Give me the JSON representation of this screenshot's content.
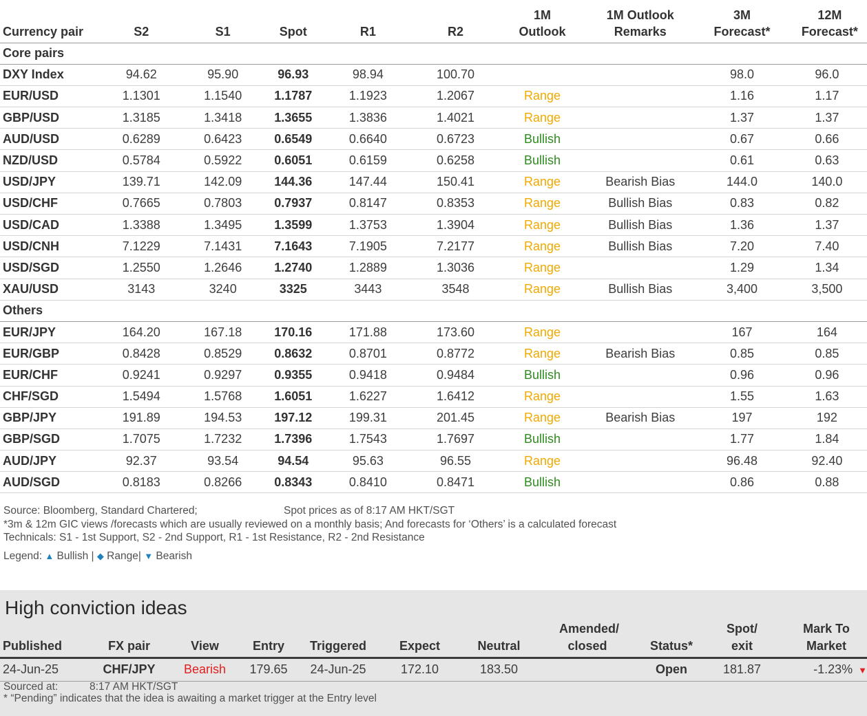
{
  "fx_table": {
    "headers": {
      "pair": "Currency pair",
      "s2": "S2",
      "s1": "S1",
      "spot": "Spot",
      "r1": "R1",
      "r2": "R2",
      "outlook": "1M Outlook",
      "remarks": "1M Outlook Remarks",
      "f3m": "3M Forecast*",
      "f12m": "12M Forecast*"
    },
    "sections": [
      {
        "title": "Core pairs",
        "rows": [
          {
            "pair": "DXY Index",
            "s2": "94.62",
            "s1": "95.90",
            "spot": "96.93",
            "r1": "98.94",
            "r2": "100.70",
            "outlook": "",
            "remarks": "",
            "f3m": "98.0",
            "f12m": "96.0"
          },
          {
            "pair": "EUR/USD",
            "s2": "1.1301",
            "s1": "1.1540",
            "spot": "1.1787",
            "r1": "1.1923",
            "r2": "1.2067",
            "outlook": "Range",
            "remarks": "",
            "f3m": "1.16",
            "f12m": "1.17"
          },
          {
            "pair": "GBP/USD",
            "s2": "1.3185",
            "s1": "1.3418",
            "spot": "1.3655",
            "r1": "1.3836",
            "r2": "1.4021",
            "outlook": "Range",
            "remarks": "",
            "f3m": "1.37",
            "f12m": "1.37"
          },
          {
            "pair": "AUD/USD",
            "s2": "0.6289",
            "s1": "0.6423",
            "spot": "0.6549",
            "r1": "0.6640",
            "r2": "0.6723",
            "outlook": "Bullish",
            "remarks": "",
            "f3m": "0.67",
            "f12m": "0.66"
          },
          {
            "pair": "NZD/USD",
            "s2": "0.5784",
            "s1": "0.5922",
            "spot": "0.6051",
            "r1": "0.6159",
            "r2": "0.6258",
            "outlook": "Bullish",
            "remarks": "",
            "f3m": "0.61",
            "f12m": "0.63"
          },
          {
            "pair": "USD/JPY",
            "s2": "139.71",
            "s1": "142.09",
            "spot": "144.36",
            "r1": "147.44",
            "r2": "150.41",
            "outlook": "Range",
            "remarks": "Bearish Bias",
            "f3m": "144.0",
            "f12m": "140.0"
          },
          {
            "pair": "USD/CHF",
            "s2": "0.7665",
            "s1": "0.7803",
            "spot": "0.7937",
            "r1": "0.8147",
            "r2": "0.8353",
            "outlook": "Range",
            "remarks": "Bullish Bias",
            "f3m": "0.83",
            "f12m": "0.82"
          },
          {
            "pair": "USD/CAD",
            "s2": "1.3388",
            "s1": "1.3495",
            "spot": "1.3599",
            "r1": "1.3753",
            "r2": "1.3904",
            "outlook": "Range",
            "remarks": "Bullish Bias",
            "f3m": "1.36",
            "f12m": "1.37"
          },
          {
            "pair": "USD/CNH",
            "s2": "7.1229",
            "s1": "7.1431",
            "spot": "7.1643",
            "r1": "7.1905",
            "r2": "7.2177",
            "outlook": "Range",
            "remarks": "Bullish Bias",
            "f3m": "7.20",
            "f12m": "7.40"
          },
          {
            "pair": "USD/SGD",
            "s2": "1.2550",
            "s1": "1.2646",
            "spot": "1.2740",
            "r1": "1.2889",
            "r2": "1.3036",
            "outlook": "Range",
            "remarks": "",
            "f3m": "1.29",
            "f12m": "1.34"
          },
          {
            "pair": "XAU/USD",
            "s2": "3143",
            "s1": "3240",
            "spot": "3325",
            "r1": "3443",
            "r2": "3548",
            "outlook": "Range",
            "remarks": "Bullish Bias",
            "f3m": "3,400",
            "f12m": "3,500"
          }
        ]
      },
      {
        "title": "Others",
        "rows": [
          {
            "pair": "EUR/JPY",
            "s2": "164.20",
            "s1": "167.18",
            "spot": "170.16",
            "r1": "171.88",
            "r2": "173.60",
            "outlook": "Range",
            "remarks": "",
            "f3m": "167",
            "f12m": "164"
          },
          {
            "pair": "EUR/GBP",
            "s2": "0.8428",
            "s1": "0.8529",
            "spot": "0.8632",
            "r1": "0.8701",
            "r2": "0.8772",
            "outlook": "Range",
            "remarks": "Bearish Bias",
            "f3m": "0.85",
            "f12m": "0.85"
          },
          {
            "pair": "EUR/CHF",
            "s2": "0.9241",
            "s1": "0.9297",
            "spot": "0.9355",
            "r1": "0.9418",
            "r2": "0.9484",
            "outlook": "Bullish",
            "remarks": "",
            "f3m": "0.96",
            "f12m": "0.96"
          },
          {
            "pair": "CHF/SGD",
            "s2": "1.5494",
            "s1": "1.5768",
            "spot": "1.6051",
            "r1": "1.6227",
            "r2": "1.6412",
            "outlook": "Range",
            "remarks": "",
            "f3m": "1.55",
            "f12m": "1.63"
          },
          {
            "pair": "GBP/JPY",
            "s2": "191.89",
            "s1": "194.53",
            "spot": "197.12",
            "r1": "199.31",
            "r2": "201.45",
            "outlook": "Range",
            "remarks": "Bearish Bias",
            "f3m": "197",
            "f12m": "192"
          },
          {
            "pair": "GBP/SGD",
            "s2": "1.7075",
            "s1": "1.7232",
            "spot": "1.7396",
            "r1": "1.7543",
            "r2": "1.7697",
            "outlook": "Bullish",
            "remarks": "",
            "f3m": "1.77",
            "f12m": "1.84"
          },
          {
            "pair": "AUD/JPY",
            "s2": "92.37",
            "s1": "93.54",
            "spot": "94.54",
            "r1": "95.63",
            "r2": "96.55",
            "outlook": "Range",
            "remarks": "",
            "f3m": "96.48",
            "f12m": "92.40"
          },
          {
            "pair": "AUD/SGD",
            "s2": "0.8183",
            "s1": "0.8266",
            "spot": "0.8343",
            "r1": "0.8410",
            "r2": "0.8471",
            "outlook": "Bullish",
            "remarks": "",
            "f3m": "0.86",
            "f12m": "0.88"
          }
        ]
      }
    ]
  },
  "notes": {
    "source": "Source: Bloomberg, Standard Chartered;",
    "spot_time": "Spot prices as of  8:17 AM HKT/SGT",
    "footnote": "*3m & 12m GIC views /forecasts which are usually reviewed on a monthly basis; And forecasts for ‘Others’ is a calculated forecast",
    "technicals": "Technicals: S1 - 1st Support, S2 - 2nd Support, R1 - 1st Resistance, R2 - 2nd Resistance"
  },
  "legend": {
    "label": "Legend:",
    "bullish": "Bullish",
    "range": "Range",
    "bearish": "Bearish",
    "up_symbol": "▲",
    "diamond_symbol": "◆",
    "down_symbol": "▼",
    "sep": "|"
  },
  "high_conviction": {
    "title": "High conviction ideas",
    "headers": {
      "published": "Published",
      "pair": "FX pair",
      "view": "View",
      "entry": "Entry",
      "triggered": "Triggered",
      "expect": "Expect",
      "neutral": "Neutral",
      "amended": "Amended/ closed",
      "status": "Status*",
      "spot_exit": "Spot/ exit",
      "mtm": "Mark To Market"
    },
    "rows": [
      {
        "published": "24-Jun-25",
        "pair": "CHF/JPY",
        "view": "Bearish",
        "entry": "179.65",
        "triggered": "24-Jun-25",
        "expect": "172.10",
        "neutral": "183.50",
        "amended": "",
        "status": "Open",
        "spot_exit": "181.87",
        "mtm": "-1.23%",
        "mtm_marker": "▼"
      }
    ],
    "sourced_label": "Sourced at:",
    "sourced_time": "8:17 AM HKT/SGT",
    "pending_note": "* “Pending” indicates that the idea is awaiting a market trigger at the Entry level"
  },
  "colors": {
    "range": "#f2a900",
    "bullish": "#2e8b1e",
    "bearish": "#e02020",
    "legend_icon": "#1f7fbf",
    "panel_bg": "#e6e6e6"
  }
}
